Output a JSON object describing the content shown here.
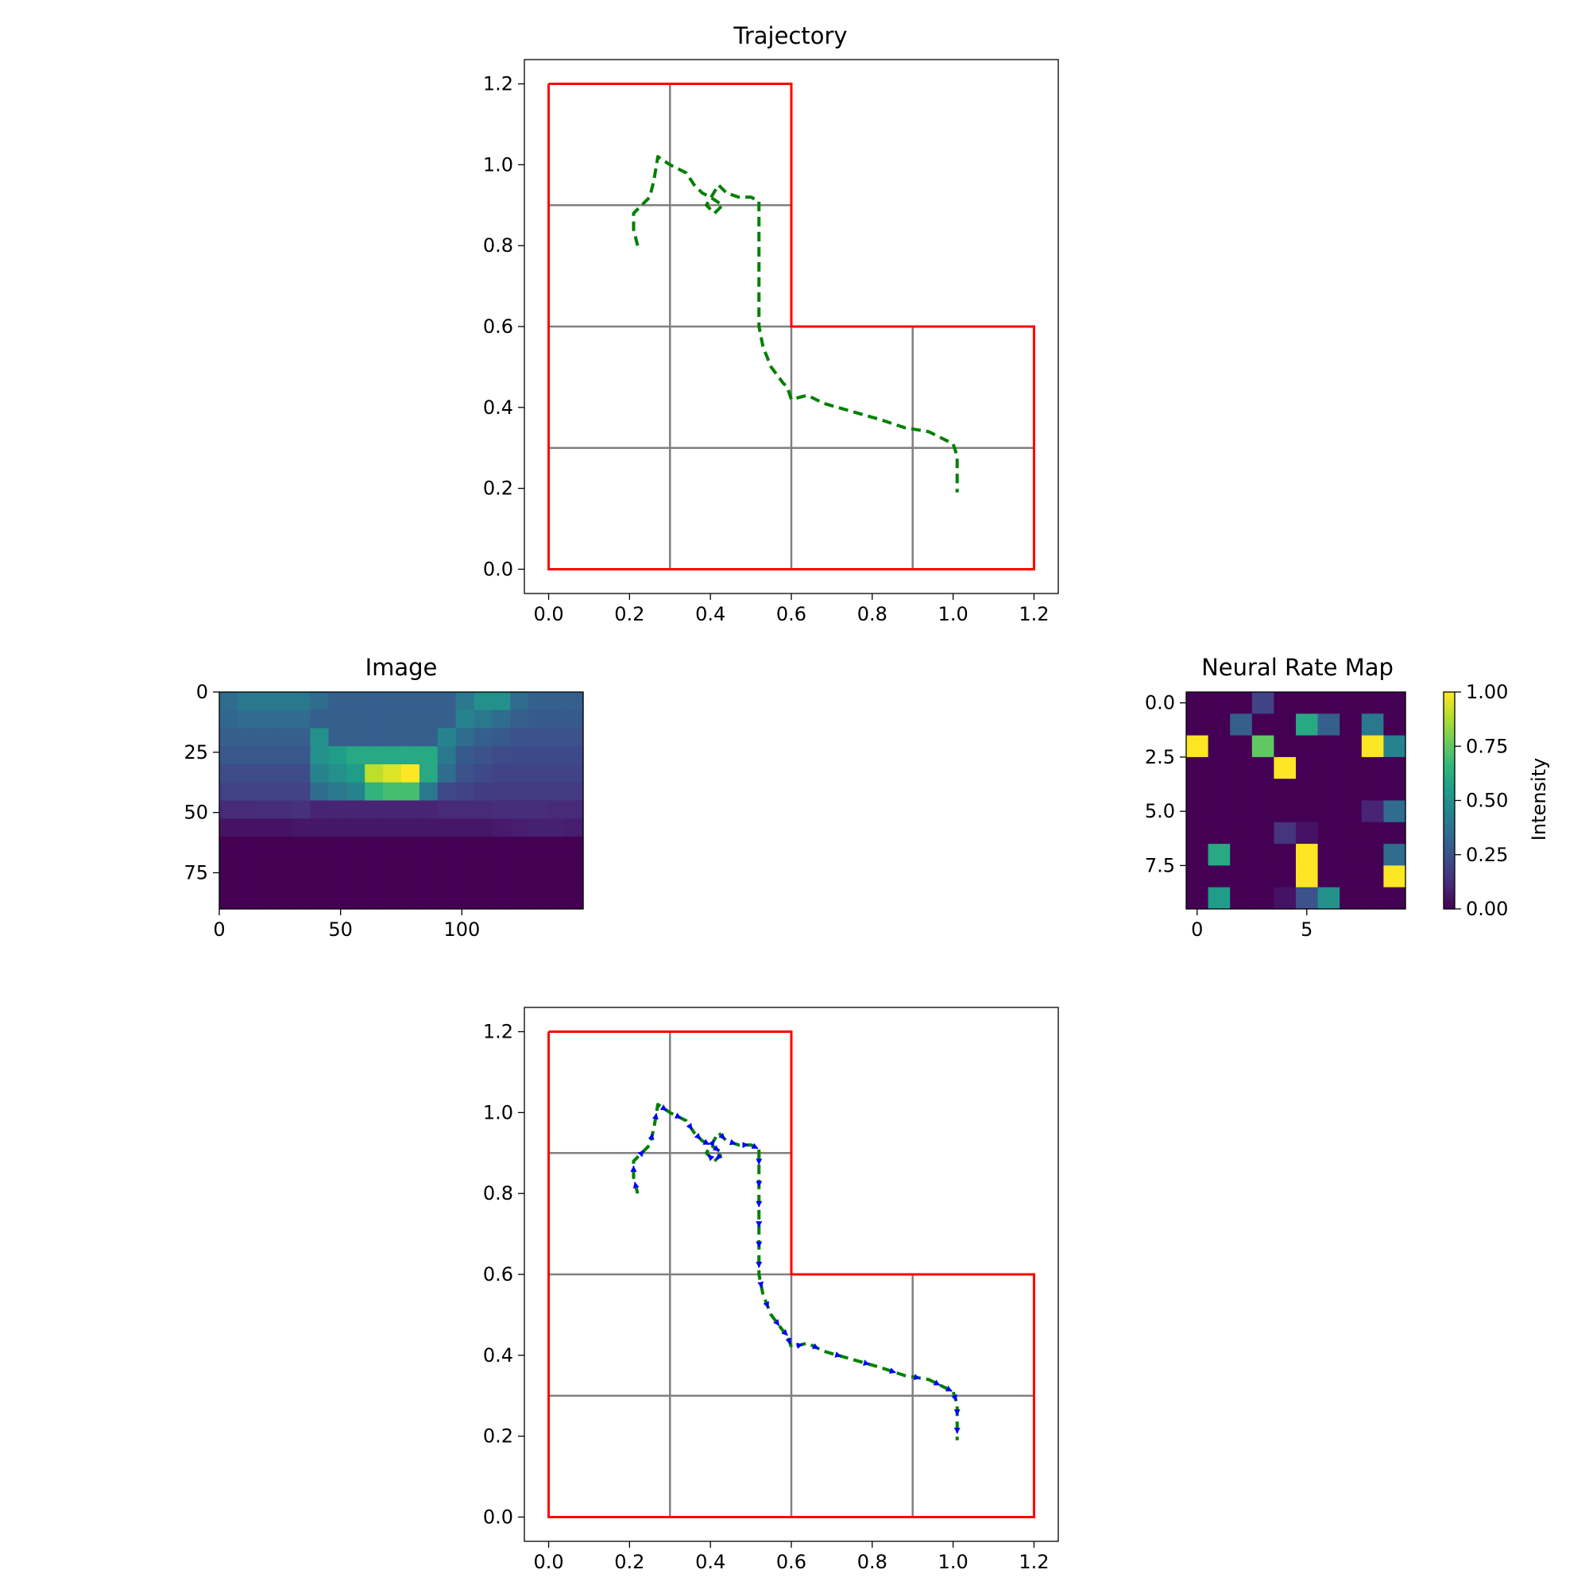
{
  "colors": {
    "room_walls": "#ff0000",
    "grid": "#808080",
    "trajectory": "#008000",
    "arrows": "#0000ff",
    "colormap": "viridis"
  },
  "chart_data": [
    {
      "id": "trajectory",
      "type": "line",
      "title": "Trajectory",
      "xlim": [
        -0.06,
        1.26
      ],
      "ylim": [
        -0.06,
        1.26
      ],
      "xticks": [
        "0.0",
        "0.2",
        "0.4",
        "0.6",
        "0.8",
        "1.0",
        "1.2"
      ],
      "yticks": [
        "0.0",
        "0.2",
        "0.4",
        "0.6",
        "0.8",
        "1.0",
        "1.2"
      ],
      "room_outline": {
        "x": [
          0,
          0.6,
          0.6,
          1.2,
          1.2,
          0,
          0
        ],
        "y": [
          1.2,
          1.2,
          0.6,
          0.6,
          0,
          0,
          1.2
        ]
      },
      "grid_segments": [
        [
          0.3,
          0,
          0.3,
          1.2
        ],
        [
          0.6,
          0,
          0.6,
          0.6
        ],
        [
          0.9,
          0,
          0.9,
          0.6
        ],
        [
          0,
          0.9,
          0.6,
          0.9
        ],
        [
          0,
          0.6,
          1.2,
          0.6
        ],
        [
          0,
          0.3,
          1.2,
          0.3
        ]
      ],
      "series": [
        {
          "style": "dashed",
          "x": [
            0.22,
            0.21,
            0.21,
            0.25,
            0.26,
            0.27,
            0.3,
            0.34,
            0.36,
            0.38,
            0.4,
            0.43,
            0.41,
            0.39,
            0.42,
            0.44,
            0.47,
            0.5,
            0.52,
            0.52,
            0.52,
            0.52,
            0.52,
            0.52,
            0.52,
            0.53,
            0.55,
            0.58,
            0.59,
            0.6,
            0.64,
            0.68,
            0.75,
            0.82,
            0.88,
            0.94,
            0.98,
            1.0,
            1.01,
            1.01,
            1.01
          ],
          "y": [
            0.8,
            0.84,
            0.88,
            0.92,
            0.96,
            1.02,
            1.0,
            0.98,
            0.95,
            0.93,
            0.92,
            0.9,
            0.88,
            0.9,
            0.95,
            0.93,
            0.92,
            0.92,
            0.91,
            0.85,
            0.8,
            0.75,
            0.7,
            0.65,
            0.6,
            0.55,
            0.5,
            0.46,
            0.45,
            0.42,
            0.43,
            0.41,
            0.39,
            0.37,
            0.35,
            0.34,
            0.32,
            0.31,
            0.28,
            0.24,
            0.19
          ]
        }
      ]
    },
    {
      "id": "image",
      "type": "heatmap",
      "title": "Image",
      "extent_x": [
        0,
        150
      ],
      "extent_y": [
        0,
        90
      ],
      "xticks": [
        "0",
        "50",
        "100"
      ],
      "yticks": [
        "0",
        "25",
        "50",
        "75"
      ],
      "values": [
        [
          0.35,
          0.4,
          0.4,
          0.4,
          0.4,
          0.35,
          0.3,
          0.3,
          0.3,
          0.3,
          0.3,
          0.3,
          0.3,
          0.4,
          0.5,
          0.5,
          0.35,
          0.3,
          0.3,
          0.3
        ],
        [
          0.33,
          0.35,
          0.35,
          0.35,
          0.35,
          0.3,
          0.3,
          0.3,
          0.3,
          0.3,
          0.3,
          0.3,
          0.3,
          0.45,
          0.4,
          0.35,
          0.3,
          0.28,
          0.28,
          0.28
        ],
        [
          0.3,
          0.3,
          0.3,
          0.3,
          0.3,
          0.5,
          0.3,
          0.3,
          0.3,
          0.3,
          0.3,
          0.3,
          0.45,
          0.35,
          0.3,
          0.28,
          0.25,
          0.25,
          0.25,
          0.25
        ],
        [
          0.27,
          0.27,
          0.27,
          0.27,
          0.27,
          0.5,
          0.55,
          0.6,
          0.6,
          0.6,
          0.6,
          0.6,
          0.4,
          0.28,
          0.25,
          0.23,
          0.22,
          0.22,
          0.22,
          0.22
        ],
        [
          0.23,
          0.23,
          0.23,
          0.23,
          0.23,
          0.45,
          0.5,
          0.55,
          0.9,
          0.95,
          1.0,
          0.6,
          0.35,
          0.25,
          0.22,
          0.2,
          0.2,
          0.2,
          0.2,
          0.2
        ],
        [
          0.2,
          0.2,
          0.2,
          0.2,
          0.2,
          0.35,
          0.4,
          0.45,
          0.65,
          0.7,
          0.7,
          0.4,
          0.22,
          0.2,
          0.18,
          0.17,
          0.17,
          0.17,
          0.17,
          0.17
        ],
        [
          0.12,
          0.12,
          0.13,
          0.13,
          0.14,
          0.1,
          0.1,
          0.1,
          0.1,
          0.1,
          0.1,
          0.1,
          0.12,
          0.12,
          0.12,
          0.13,
          0.13,
          0.13,
          0.12,
          0.12
        ],
        [
          0.05,
          0.05,
          0.05,
          0.05,
          0.06,
          0.06,
          0.06,
          0.06,
          0.06,
          0.06,
          0.06,
          0.06,
          0.06,
          0.06,
          0.06,
          0.07,
          0.08,
          0.09,
          0.09,
          0.08
        ],
        [
          0.0,
          0.0,
          0.0,
          0.0,
          0.0,
          0.0,
          0.0,
          0.0,
          0.0,
          0.0,
          0.0,
          0.0,
          0.0,
          0.0,
          0.0,
          0.0,
          0.0,
          0.0,
          0.0,
          0.0
        ],
        [
          0.0,
          0.0,
          0.0,
          0.0,
          0.0,
          0.0,
          0.0,
          0.0,
          0.0,
          0.0,
          0.0,
          0.0,
          0.0,
          0.0,
          0.0,
          0.0,
          0.0,
          0.0,
          0.0,
          0.0
        ],
        [
          0.0,
          0.0,
          0.0,
          0.0,
          0.0,
          0.0,
          0.0,
          0.0,
          0.0,
          0.0,
          0.0,
          0.0,
          0.0,
          0.0,
          0.0,
          0.0,
          0.0,
          0.0,
          0.0,
          0.0
        ],
        [
          0.0,
          0.0,
          0.0,
          0.0,
          0.0,
          0.0,
          0.0,
          0.0,
          0.0,
          0.0,
          0.0,
          0.0,
          0.0,
          0.0,
          0.0,
          0.0,
          0.0,
          0.0,
          0.0,
          0.0
        ]
      ]
    },
    {
      "id": "neural-rate-map",
      "type": "heatmap",
      "title": "Neural Rate Map",
      "extent_x": [
        -0.5,
        9.5
      ],
      "extent_y": [
        -0.5,
        9.5
      ],
      "xticks": [
        "0",
        "5"
      ],
      "yticks": [
        "0.0",
        "2.5",
        "5.0",
        "7.5"
      ],
      "colorbar": {
        "label": "Intensity",
        "ticks": [
          "0.00",
          "0.25",
          "0.50",
          "0.75",
          "1.00"
        ]
      },
      "values": [
        [
          0,
          0,
          0,
          0.2,
          0,
          0,
          0,
          0,
          0,
          0
        ],
        [
          0,
          0,
          0.3,
          0,
          0,
          0.6,
          0.3,
          0,
          0.4,
          0
        ],
        [
          1,
          0,
          0,
          0.75,
          0,
          0,
          0,
          0,
          1,
          0.45
        ],
        [
          0,
          0,
          0,
          0,
          1,
          0,
          0,
          0,
          0,
          0
        ],
        [
          0,
          0,
          0,
          0,
          0,
          0,
          0,
          0,
          0,
          0
        ],
        [
          0,
          0,
          0,
          0,
          0,
          0,
          0,
          0,
          0.1,
          0.35
        ],
        [
          0,
          0,
          0,
          0,
          0.15,
          0.05,
          0,
          0,
          0,
          0
        ],
        [
          0,
          0.6,
          0,
          0,
          0,
          1,
          0,
          0,
          0,
          0.35
        ],
        [
          0,
          0,
          0,
          0,
          0,
          1,
          0,
          0,
          0,
          1
        ],
        [
          0,
          0.55,
          0,
          0,
          0.05,
          0.25,
          0.5,
          0,
          0,
          0
        ]
      ]
    },
    {
      "id": "trajectory-arrows",
      "type": "line",
      "title": "",
      "xlim": [
        -0.06,
        1.26
      ],
      "ylim": [
        -0.06,
        1.26
      ],
      "xticks": [
        "0.0",
        "0.2",
        "0.4",
        "0.6",
        "0.8",
        "1.0",
        "1.2"
      ],
      "yticks": [
        "0.0",
        "0.2",
        "0.4",
        "0.6",
        "0.8",
        "1.0",
        "1.2"
      ],
      "room_outline": {
        "x": [
          0,
          0.6,
          0.6,
          1.2,
          1.2,
          0,
          0
        ],
        "y": [
          1.2,
          1.2,
          0.6,
          0.6,
          0,
          0,
          1.2
        ]
      },
      "grid_segments": [
        [
          0.3,
          0,
          0.3,
          1.2
        ],
        [
          0.6,
          0,
          0.6,
          0.6
        ],
        [
          0.9,
          0,
          0.9,
          0.6
        ],
        [
          0,
          0.9,
          0.6,
          0.9
        ],
        [
          0,
          0.6,
          1.2,
          0.6
        ],
        [
          0,
          0.3,
          1.2,
          0.3
        ]
      ],
      "series": [
        {
          "style": "dashed-with-arrows",
          "x": [
            0.22,
            0.21,
            0.21,
            0.25,
            0.26,
            0.27,
            0.3,
            0.34,
            0.36,
            0.38,
            0.4,
            0.43,
            0.41,
            0.39,
            0.42,
            0.44,
            0.47,
            0.5,
            0.52,
            0.52,
            0.52,
            0.52,
            0.52,
            0.52,
            0.52,
            0.53,
            0.55,
            0.58,
            0.59,
            0.6,
            0.64,
            0.68,
            0.75,
            0.82,
            0.88,
            0.94,
            0.98,
            1.0,
            1.01,
            1.01,
            1.01
          ],
          "y": [
            0.8,
            0.84,
            0.88,
            0.92,
            0.96,
            1.02,
            1.0,
            0.98,
            0.95,
            0.93,
            0.92,
            0.9,
            0.88,
            0.9,
            0.95,
            0.93,
            0.92,
            0.92,
            0.91,
            0.85,
            0.8,
            0.75,
            0.7,
            0.65,
            0.6,
            0.55,
            0.5,
            0.46,
            0.45,
            0.42,
            0.43,
            0.41,
            0.39,
            0.37,
            0.35,
            0.34,
            0.32,
            0.31,
            0.28,
            0.24,
            0.19
          ]
        }
      ]
    }
  ]
}
